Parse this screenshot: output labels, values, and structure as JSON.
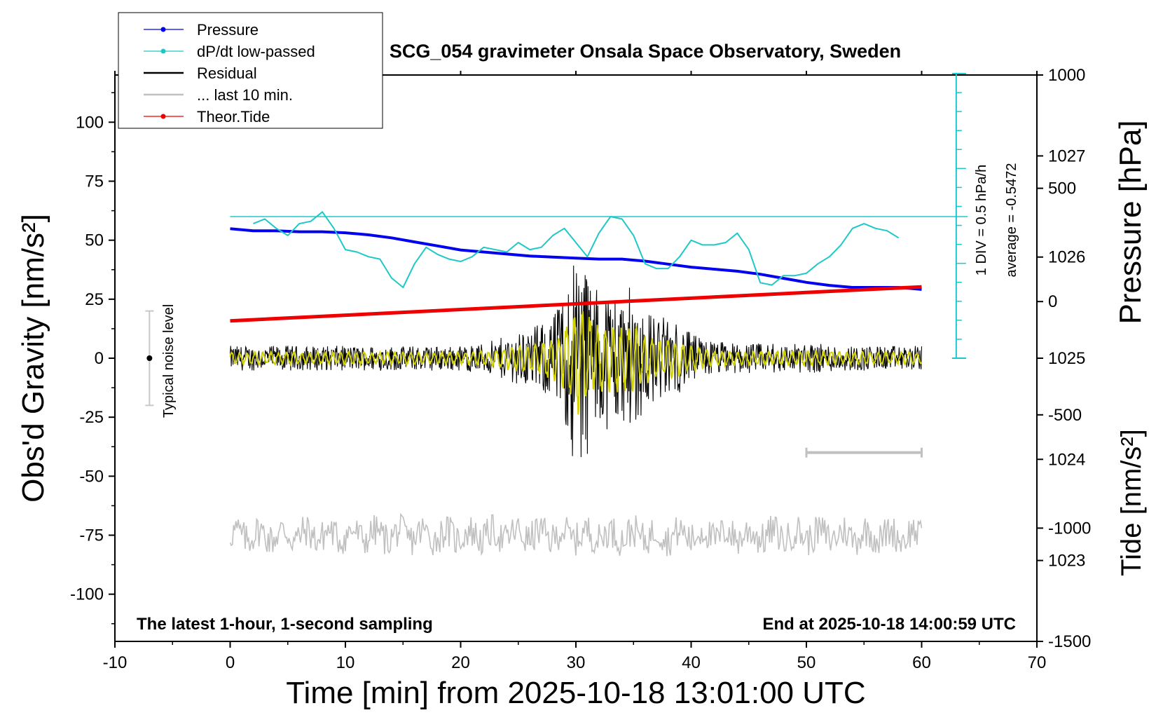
{
  "colors": {
    "pressure": "#0000ee",
    "dpdt": "#1ec8c8",
    "residual": "#000000",
    "last10": "#c0c0c0",
    "tide": "#ee0000",
    "filtered": "#d2d200"
  },
  "chart_data": {
    "type": "line",
    "title": "SCG_054 gravimeter Onsala Space Observatory, Sweden",
    "xlabel": "Time [min] from 2025-10-18 13:01:00 UTC",
    "ylabel": "Obs'd Gravity [nm/s²]",
    "ylabel_right_top": "Pressure [hPa]",
    "ylabel_right_bottom": "Tide [nm/s²]",
    "xlim": [
      -10,
      70
    ],
    "ylim": [
      -120,
      120
    ],
    "pressure_lim": [
      1022.2,
      1027.8
    ],
    "tide_lim": [
      -1500,
      1000
    ],
    "x_ticks": [
      "-10",
      "0",
      "10",
      "20",
      "30",
      "40",
      "50",
      "60",
      "70"
    ],
    "y_ticks": [
      "-100",
      "-75",
      "-50",
      "-25",
      "0",
      "25",
      "50",
      "75",
      "100"
    ],
    "pressure_ticks": [
      "1023",
      "1024",
      "1025",
      "1026",
      "1027"
    ],
    "tide_ticks": [
      "-1500",
      "-1000",
      "-500",
      "0",
      "500",
      "1000"
    ],
    "legend": [
      {
        "label": "Pressure",
        "color": "#0000ee",
        "marker": true
      },
      {
        "label": "dP/dt low-passed",
        "color": "#1ec8c8",
        "marker": true
      },
      {
        "label": "Residual",
        "color": "#000000",
        "marker": false
      },
      {
        "label": "... last 10 min.",
        "color": "#c0c0c0",
        "marker": false
      },
      {
        "label": "Theor.Tide",
        "color": "#ee0000",
        "marker": true
      }
    ],
    "annotations": {
      "left_note": "The latest 1-hour, 1-second sampling",
      "right_note": "End at 2025-10-18 14:00:59 UTC",
      "noise_label": "Typical noise level",
      "div_label": "1 DIV = 0.5 hPa/h",
      "average_label": "average = -0.5472"
    },
    "noise_bar": {
      "x": -7,
      "center": 0,
      "half_range": 20
    },
    "dpdt_zero_level": 60,
    "last10_bar": {
      "x": [
        50,
        60
      ],
      "y": -40
    },
    "series": [
      {
        "name": "Pressure",
        "axis": "pressure",
        "x": [
          0,
          2,
          4,
          6,
          8,
          10,
          12,
          14,
          16,
          18,
          20,
          22,
          24,
          26,
          28,
          30,
          32,
          34,
          36,
          38,
          40,
          42,
          44,
          46,
          48,
          50,
          52,
          54,
          56,
          58,
          60
        ],
        "values": [
          1026.28,
          1026.26,
          1026.26,
          1026.25,
          1026.25,
          1026.24,
          1026.22,
          1026.19,
          1026.15,
          1026.11,
          1026.07,
          1026.05,
          1026.03,
          1026.01,
          1026.0,
          1025.99,
          1025.98,
          1025.98,
          1025.96,
          1025.93,
          1025.9,
          1025.88,
          1025.86,
          1025.83,
          1025.79,
          1025.75,
          1025.72,
          1025.7,
          1025.7,
          1025.7,
          1025.68
        ]
      },
      {
        "name": "dP/dt low-passed",
        "axis": "gravity",
        "x": [
          2,
          3,
          4,
          5,
          6,
          7,
          8,
          9,
          10,
          11,
          12,
          13,
          14,
          15,
          16,
          17,
          18,
          19,
          20,
          21,
          22,
          23,
          24,
          25,
          26,
          27,
          28,
          29,
          30,
          31,
          32,
          33,
          34,
          35,
          36,
          37,
          38,
          39,
          40,
          41,
          42,
          43,
          44,
          45,
          46,
          47,
          48,
          49,
          50,
          51,
          52,
          53,
          54,
          55,
          56,
          57,
          58
        ],
        "values": [
          57,
          59,
          55,
          52,
          57,
          58,
          62,
          55,
          46,
          45,
          43,
          42,
          34,
          30,
          40,
          47,
          44,
          42,
          41,
          43,
          47,
          46,
          45,
          49,
          46,
          47,
          52,
          55,
          49,
          43,
          53,
          60,
          59,
          52,
          40,
          38,
          38,
          43,
          50,
          48,
          48,
          49,
          53,
          46,
          32,
          31,
          35,
          35,
          36,
          40,
          43,
          48,
          55,
          57,
          55,
          54,
          51
        ]
      },
      {
        "name": "Theor.Tide",
        "axis": "tide",
        "x": [
          0,
          60
        ],
        "values": [
          -85,
          65
        ]
      }
    ],
    "residual_envelope": {
      "x": [
        0,
        5,
        10,
        15,
        20,
        22,
        24,
        26,
        27,
        28,
        29,
        30,
        31,
        32,
        33,
        34,
        35,
        36,
        37,
        38,
        39,
        40,
        42,
        45,
        50,
        55,
        60
      ],
      "amplitude": [
        5,
        5,
        5,
        5,
        5,
        6,
        9,
        12,
        14,
        18,
        25,
        48,
        40,
        26,
        30,
        26,
        30,
        20,
        18,
        16,
        14,
        10,
        7,
        6,
        6,
        5,
        5
      ]
    },
    "last10_baseline": -75
  }
}
